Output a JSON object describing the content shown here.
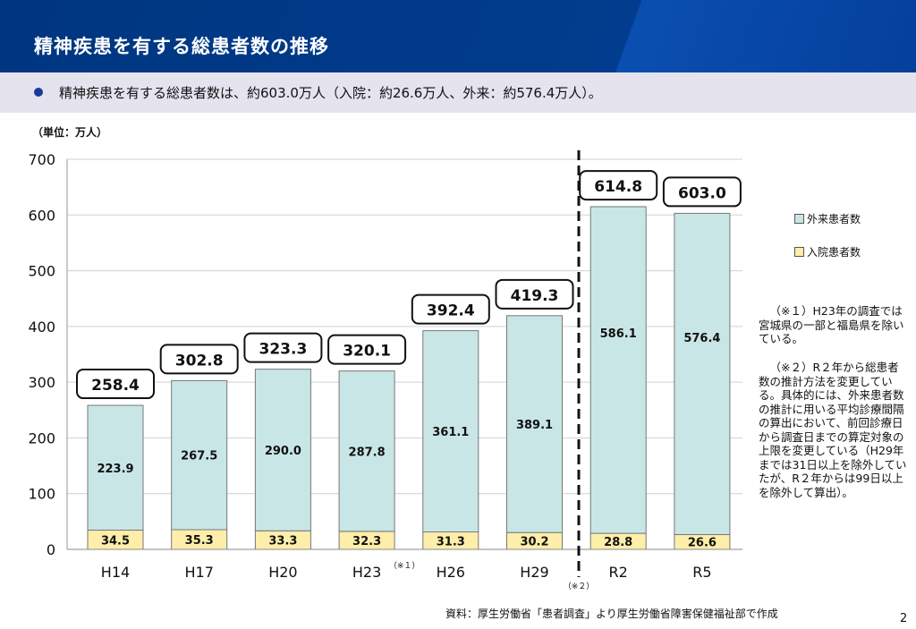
{
  "header": {
    "title": "精神疾患を有する総患者数の推移"
  },
  "summary": "精神疾患を有する総患者数は、約603.0万人（入院：約26.6万人、外来：約576.4万人）。",
  "unit_label": "（単位：万人）",
  "notes": [
    "（※１）H23年の調査では宮城県の一部と福島県を除いている。",
    "（※２）R２年から総患者数の推計方法を変更している。具体的には、外来患者数の推計に用いる平均診療間隔の算出において、前回診療日から調査日までの算定対象の上限を変更している（H29年までは31日以上を除外していたが、R２年からは99日以上を除外して算出）。"
  ],
  "source": "資料：厚生労働省「患者調査」より厚生労働省障害保健福祉部で作成",
  "page_number": "2",
  "chart_data": {
    "type": "bar",
    "stacked": true,
    "categories": [
      "H14",
      "H17",
      "H20",
      "H23",
      "H26",
      "H29",
      "R2",
      "R5"
    ],
    "category_notes": {
      "H23": "（※１）"
    },
    "divider_note": "（※２）",
    "series": [
      {
        "name": "入院患者数",
        "color": "#fdeeaa",
        "values": [
          34.5,
          35.3,
          33.3,
          32.3,
          31.3,
          30.2,
          28.8,
          26.6
        ]
      },
      {
        "name": "外来患者数",
        "color": "#c9e6e6",
        "values": [
          223.9,
          267.5,
          290.0,
          287.8,
          361.1,
          389.1,
          586.1,
          576.4
        ]
      }
    ],
    "totals": [
      258.4,
      302.8,
      323.3,
      320.1,
      392.4,
      419.3,
      614.8,
      603.0
    ],
    "yticks": [
      0,
      100,
      200,
      300,
      400,
      500,
      600,
      700
    ],
    "ylim": [
      0,
      700
    ],
    "legend": [
      "外来患者数",
      "入院患者数"
    ],
    "legend_position": "right",
    "grid": true
  }
}
